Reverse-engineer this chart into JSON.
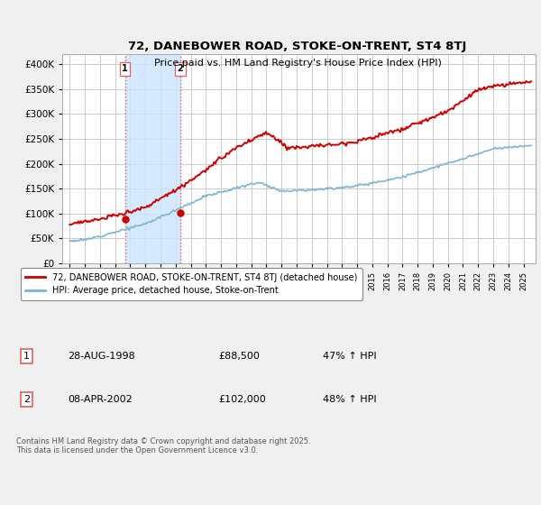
{
  "title": "72, DANEBOWER ROAD, STOKE-ON-TRENT, ST4 8TJ",
  "subtitle": "Price paid vs. HM Land Registry's House Price Index (HPI)",
  "legend_line1": "72, DANEBOWER ROAD, STOKE-ON-TRENT, ST4 8TJ (detached house)",
  "legend_line2": "HPI: Average price, detached house, Stoke-on-Trent",
  "footnote": "Contains HM Land Registry data © Crown copyright and database right 2025.\nThis data is licensed under the Open Government Licence v3.0.",
  "transactions": [
    {
      "label": "1",
      "date": "28-AUG-1998",
      "price": 88500,
      "hpi_change": "47% ↑ HPI",
      "x": 1998.65
    },
    {
      "label": "2",
      "date": "08-APR-2002",
      "price": 102000,
      "hpi_change": "48% ↑ HPI",
      "x": 2002.3
    }
  ],
  "ylim": [
    0,
    420000
  ],
  "xlim": [
    1994.5,
    2025.8
  ],
  "highlight_color": "#cce5ff",
  "vline_color": "#e06060",
  "red_line_color": "#cc0000",
  "blue_line_color": "#7fb3d3",
  "background_color": "#f0f0f0",
  "plot_bg_color": "#ffffff",
  "grid_color": "#cccccc",
  "yticks": [
    0,
    50000,
    100000,
    150000,
    200000,
    250000,
    300000,
    350000,
    400000
  ]
}
